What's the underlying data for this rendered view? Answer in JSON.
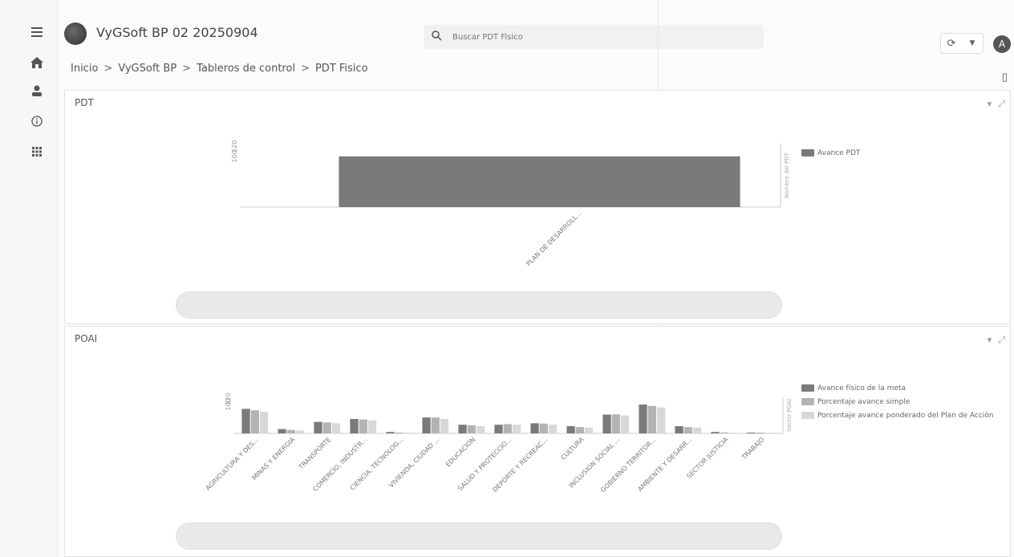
{
  "app": {
    "title": "VyGSoft BP 02 20250904",
    "avatar_letter": "A"
  },
  "search": {
    "placeholder": "Buscar PDT Fisico"
  },
  "breadcrumb": [
    "Inicio",
    "VyGSoft BP",
    "Tableros de control",
    "PDT Fisico"
  ],
  "sidebar": {
    "icons": [
      "menu-icon",
      "home-icon",
      "user-icon",
      "info-icon",
      "apps-icon"
    ]
  },
  "panels": [
    {
      "title": "PDT"
    },
    {
      "title": "POAI"
    }
  ],
  "chart_data": [
    {
      "type": "bar",
      "categories": [
        "PLAN DE DESARROLL..."
      ],
      "series": [
        {
          "name": "Avance PDT",
          "values": [
            100
          ]
        }
      ],
      "title": "",
      "xlabel": "",
      "ylabel": "Nombre del PDT",
      "y_ticks": [
        "100",
        "120"
      ],
      "ylim": [
        0,
        125
      ],
      "legend": "right",
      "colors": [
        "#7a7a7a"
      ]
    },
    {
      "type": "bar",
      "categories": [
        "AGRICULTURA Y DES...",
        "MINAS Y ENERGIA",
        "TRANSPORTE",
        "COMERCIO, INDUSTR...",
        "CIENCIA, TECNOLOG...",
        "VIVIENDA, CIUDAD ...",
        "EDUCACION",
        "SALUD Y PROTECCIO...",
        "DEPORTE Y RECREAC...",
        "CULTURA",
        "INCLUSION SOCIAL ...",
        "GOBIERNO TERRITOR...",
        "AMBIENTE Y DESARR...",
        "SECTOR JUSTICIA",
        "TRABAJO"
      ],
      "series": [
        {
          "name": "Avance físico de la meta",
          "values": [
            85,
            15,
            40,
            50,
            5,
            55,
            30,
            30,
            35,
            25,
            65,
            100,
            25,
            5,
            0
          ]
        },
        {
          "name": "Porcentaje avance simple",
          "values": [
            80,
            12,
            38,
            48,
            3,
            55,
            28,
            32,
            34,
            22,
            66,
            95,
            22,
            3,
            0
          ]
        },
        {
          "name": "Porcentaje avance ponderado del Plan de Acción",
          "values": [
            75,
            10,
            35,
            45,
            2,
            50,
            25,
            30,
            30,
            20,
            62,
            90,
            20,
            2,
            0
          ]
        }
      ],
      "title": "",
      "xlabel": "",
      "ylabel": "Sector POAI",
      "y_ticks": [
        "100",
        "120"
      ],
      "ylim": [
        0,
        125
      ],
      "legend": "right",
      "colors": [
        "#7a7a7a",
        "#b3b3b3",
        "#d8d8d8"
      ]
    }
  ]
}
